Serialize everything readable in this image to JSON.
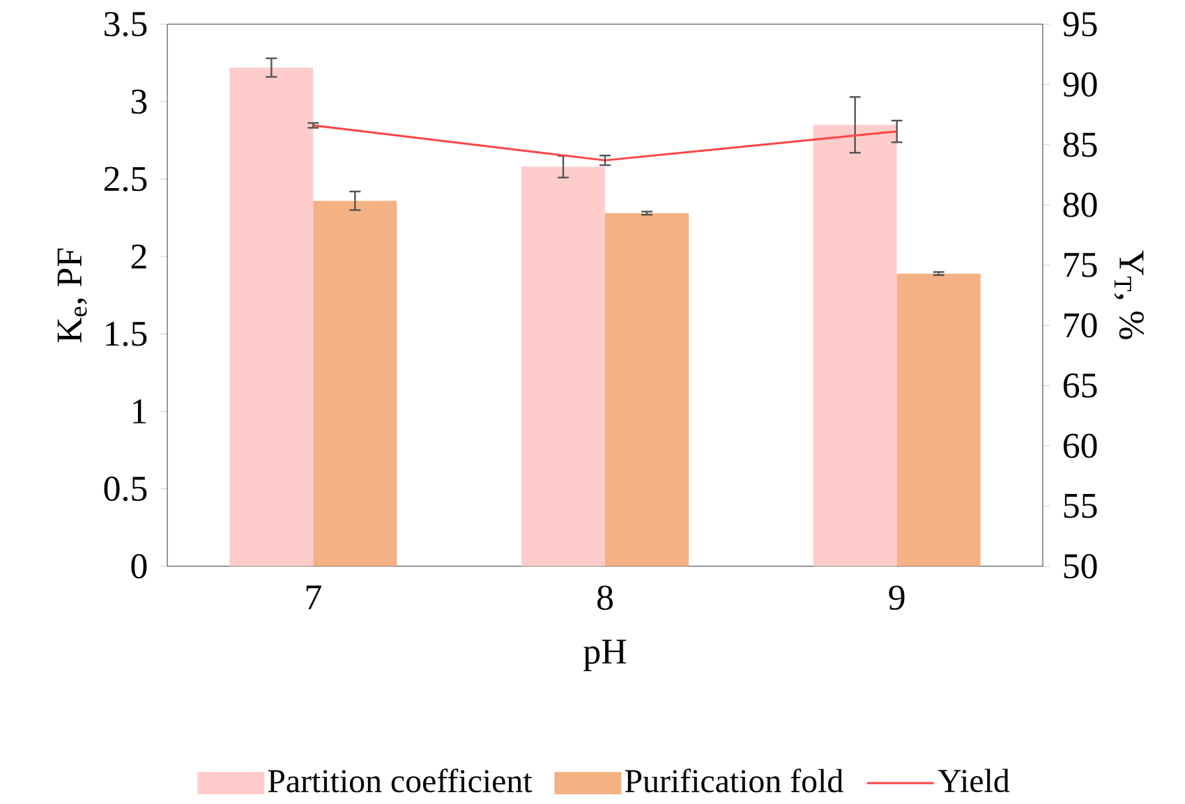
{
  "chart_data": {
    "type": "bar",
    "xlabel": "pH",
    "ylabel": "K$_{e}$, PF",
    "y2label": "Y$_{T}$, %",
    "categories": [
      "7",
      "8",
      "9"
    ],
    "series": [
      {
        "name": "Partition coefficient",
        "color": "#ffcccc",
        "values": [
          3.22,
          2.58,
          2.85
        ],
        "errors": [
          0.06,
          0.07,
          0.18
        ]
      },
      {
        "name": "Purification fold",
        "color": "#f4b183",
        "values": [
          2.36,
          2.28,
          1.89
        ],
        "errors": [
          0.06,
          0.01,
          0.01
        ]
      },
      {
        "name": "Yield",
        "type": "line",
        "axis": "y2",
        "color": "#ff4444",
        "values": [
          86.6,
          83.7,
          86.1
        ],
        "errors": [
          0.2,
          0.4,
          0.9
        ]
      }
    ],
    "ylim": [
      0,
      3.5
    ],
    "yticks": [
      0,
      0.5,
      1,
      1.5,
      2,
      2.5,
      3,
      3.5
    ],
    "y2lim": [
      50,
      95
    ],
    "y2ticks": [
      50,
      55,
      60,
      65,
      70,
      75,
      80,
      85,
      90,
      95
    ],
    "grid": false,
    "legend": "bottom"
  }
}
